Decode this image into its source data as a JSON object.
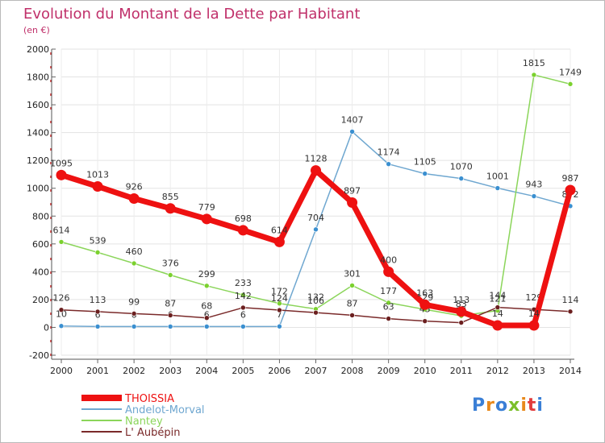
{
  "page": {
    "title": "Evolution du Montant de la Dette par Habitant",
    "subtitle": "(en €)"
  },
  "logo": {
    "text": "Proxiti",
    "letter_colors": [
      "#3a7fd6",
      "#e8891c",
      "#3a7fd6",
      "#7bbf2a",
      "#e8891c",
      "#e23b3b",
      "#3a7fd6"
    ]
  },
  "chart_data": {
    "type": "line",
    "x": [
      2000,
      2001,
      2002,
      2003,
      2004,
      2005,
      2006,
      2007,
      2008,
      2009,
      2010,
      2011,
      2012,
      2013,
      2014
    ],
    "ylim": [
      -200,
      2000
    ],
    "yticks": [
      -200,
      0,
      200,
      400,
      600,
      800,
      1000,
      1200,
      1400,
      1600,
      1800,
      2000
    ],
    "grid": true,
    "legend_position": "bottom",
    "series": [
      {
        "name": "Andelot-Morval",
        "color": "#6fa7d0",
        "point_color": "#3a8fd0",
        "values": [
          10,
          6,
          6,
          6,
          6,
          6,
          7,
          704,
          1407,
          1174,
          1105,
          1070,
          1001,
          943,
          872
        ],
        "labels": [
          "10",
          "6",
          "6",
          "6",
          "6",
          "6",
          "7",
          "704",
          "1407",
          "1174",
          "1105",
          "1070",
          "1001",
          "943",
          "872"
        ]
      },
      {
        "name": "Nantey",
        "color": "#8bd55a",
        "point_color": "#7bd12e",
        "values": [
          614,
          539,
          460,
          376,
          299,
          233,
          172,
          132,
          301,
          177,
          129,
          83,
          121,
          1815,
          1749
        ],
        "labels": [
          "614",
          "539",
          "460",
          "376",
          "299",
          "233",
          "172",
          "132",
          "301",
          "177",
          "129",
          "83",
          "121",
          "1815",
          "1749"
        ]
      },
      {
        "name": "L' Aubépin",
        "color": "#7a2a2a",
        "point_color": "#6b1f1f",
        "values": [
          126,
          113,
          99,
          87,
          68,
          142,
          124,
          106,
          87,
          63,
          45,
          34,
          144,
          129,
          114
        ],
        "labels": [
          "126",
          "113",
          "99",
          "87",
          "68",
          "142",
          "124",
          "106",
          "87",
          "63",
          "45",
          "34",
          "144",
          "129",
          "114"
        ]
      },
      {
        "name": "THOISSIA",
        "color": "#ee1111",
        "point_color": "#ee1111",
        "values": [
          1095,
          1013,
          926,
          855,
          779,
          698,
          614,
          1128,
          897,
          400,
          163,
          113,
          14,
          14,
          987
        ],
        "labels": [
          "1095",
          "1013",
          "926",
          "855",
          "779",
          "698",
          "614",
          "1128",
          "897",
          "400",
          "163",
          "113",
          "14",
          "14",
          "987"
        ]
      }
    ],
    "legend_order": [
      "THOISSIA",
      "Andelot-Morval",
      "Nantey",
      "L' Aubépin"
    ]
  }
}
